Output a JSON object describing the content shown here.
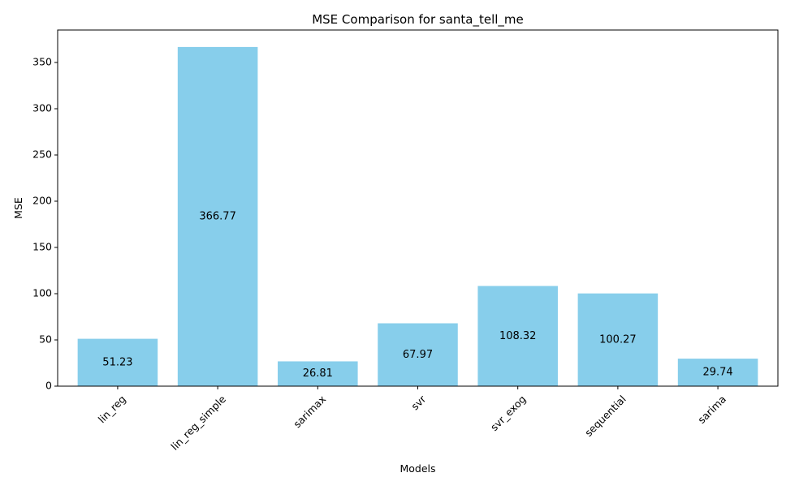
{
  "chart_data": {
    "type": "bar",
    "title": "MSE Comparison for santa_tell_me",
    "xlabel": "Models",
    "ylabel": "MSE",
    "categories": [
      "lin_reg",
      "lin_reg_simple",
      "sarimax",
      "svr",
      "svr_exog",
      "sequential",
      "sarima"
    ],
    "values": [
      51.23,
      366.77,
      26.81,
      67.97,
      108.32,
      100.27,
      29.74
    ],
    "data_labels": [
      "51.23",
      "366.77",
      "26.81",
      "67.97",
      "108.32",
      "100.27",
      "29.74"
    ],
    "ylim": [
      0,
      385.11
    ],
    "yticks": [
      0,
      50,
      100,
      150,
      200,
      250,
      300,
      350
    ],
    "xtick_rotation_deg": 45,
    "bar_color": "#87ceeb",
    "grid": false,
    "legend": "none"
  }
}
